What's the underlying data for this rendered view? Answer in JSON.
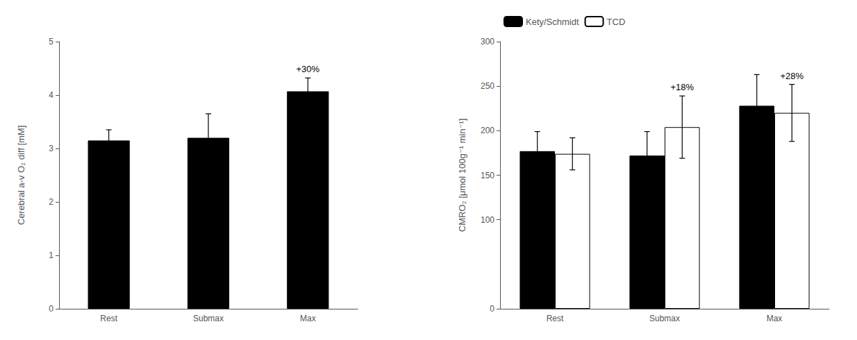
{
  "chart_data": [
    {
      "type": "bar",
      "categories": [
        "Rest",
        "Submax",
        "Max"
      ],
      "series": [
        {
          "color": "#000000",
          "values": [
            3.15,
            3.2,
            4.07
          ],
          "errors": [
            0.2,
            0.45,
            0.25
          ]
        }
      ],
      "ylabel": "Cerebral a-v O₂ diff [mM]",
      "ylim": [
        0,
        5
      ],
      "yticks": [
        0,
        1,
        2,
        3,
        4,
        5
      ],
      "grid": false,
      "annotations": [
        {
          "text": "+30%",
          "category": "Max"
        }
      ]
    },
    {
      "type": "bar",
      "categories": [
        "Rest",
        "Submax",
        "Max"
      ],
      "series": [
        {
          "name": "Kety/Schmidt",
          "color": "#000000",
          "values": [
            177,
            172,
            228
          ],
          "errors": [
            22,
            27,
            35
          ]
        },
        {
          "name": "TCD",
          "color": "#ffffff",
          "values": [
            174,
            204,
            220
          ],
          "errors": [
            18,
            35,
            32
          ]
        }
      ],
      "ylabel": "CMRO₂ [μmol 100g⁻¹ min⁻¹]",
      "ylim": [
        0,
        300
      ],
      "yticks": [
        0,
        100,
        150,
        200,
        250,
        300
      ],
      "grid": false,
      "legend": "upper left",
      "annotations": [
        {
          "text": "+18%",
          "category": "Submax",
          "series": "TCD"
        },
        {
          "text": "+28%",
          "category": "Max",
          "series": "TCD"
        }
      ]
    }
  ]
}
